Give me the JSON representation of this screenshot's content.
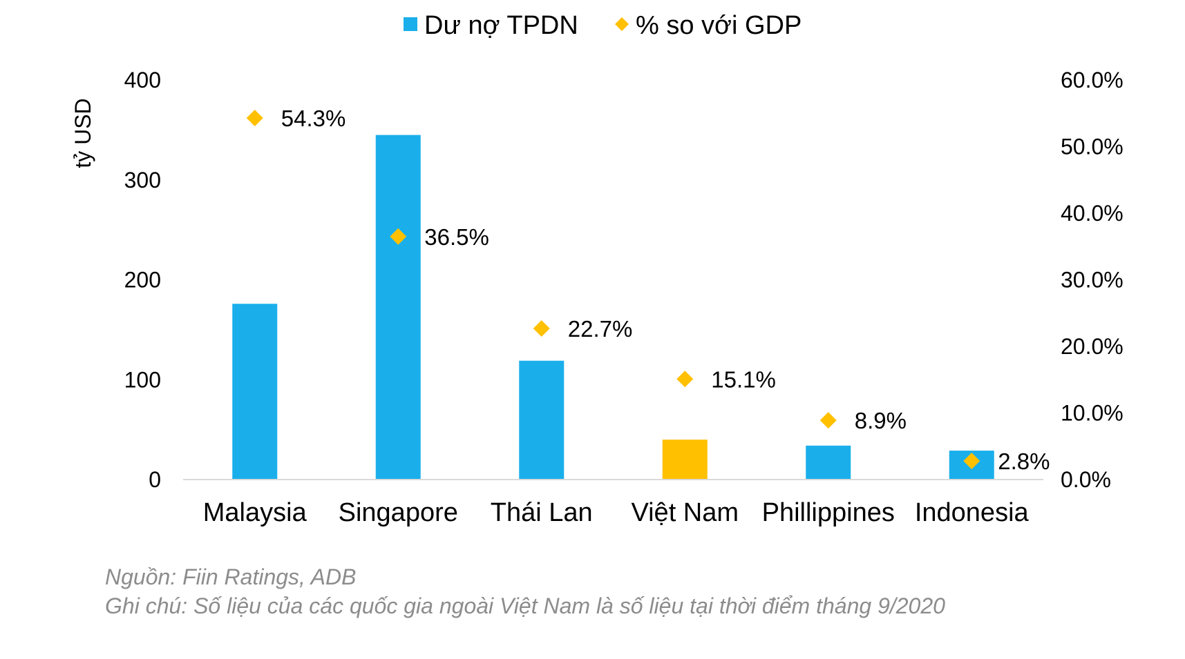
{
  "chart_data": {
    "type": "bar",
    "title": "",
    "categories": [
      "Malaysia",
      "Singapore",
      "Thái Lan",
      "Việt Nam",
      "Phillippines",
      "Indonesia"
    ],
    "series": [
      {
        "name": "Dư nợ TPDN",
        "kind": "bar",
        "axis": "left",
        "values": [
          176,
          345,
          119,
          40,
          34,
          29
        ],
        "colors": [
          "#1AAFEB",
          "#1AAFEB",
          "#1AAFEB",
          "#FFC000",
          "#1AAFEB",
          "#1AAFEB"
        ]
      },
      {
        "name": "% so với GDP",
        "kind": "scatter",
        "axis": "right",
        "values": [
          54.3,
          36.5,
          22.7,
          15.1,
          8.9,
          2.8
        ],
        "labels": [
          "54.3%",
          "36.5%",
          "22.7%",
          "15.1%",
          "8.9%",
          "2.8%"
        ],
        "color": "#FFC000"
      }
    ],
    "ylabel": "tỷ USD",
    "ylim": [
      0,
      400
    ],
    "yticks": [
      "0",
      "100",
      "200",
      "300",
      "400"
    ],
    "y2lim": [
      0,
      60
    ],
    "y2ticks": [
      "0.0%",
      "10.0%",
      "20.0%",
      "30.0%",
      "40.0%",
      "50.0%",
      "60.0%"
    ],
    "legend_position": "top-center",
    "grid": false
  },
  "legend": {
    "items": [
      "Dư nợ TPDN",
      "% so với GDP"
    ]
  },
  "notes": {
    "source": "Nguồn: Fiin Ratings, ADB",
    "note": "Ghi chú: Số liệu của các quốc gia ngoài Việt Nam là số liệu tại thời điểm tháng 9/2020"
  },
  "colors": {
    "bar": "#1AAFEB",
    "highlight": "#FFC000",
    "marker": "#FFC000",
    "axis": "#D9D9D9",
    "note_text": "#8c8c8c"
  }
}
